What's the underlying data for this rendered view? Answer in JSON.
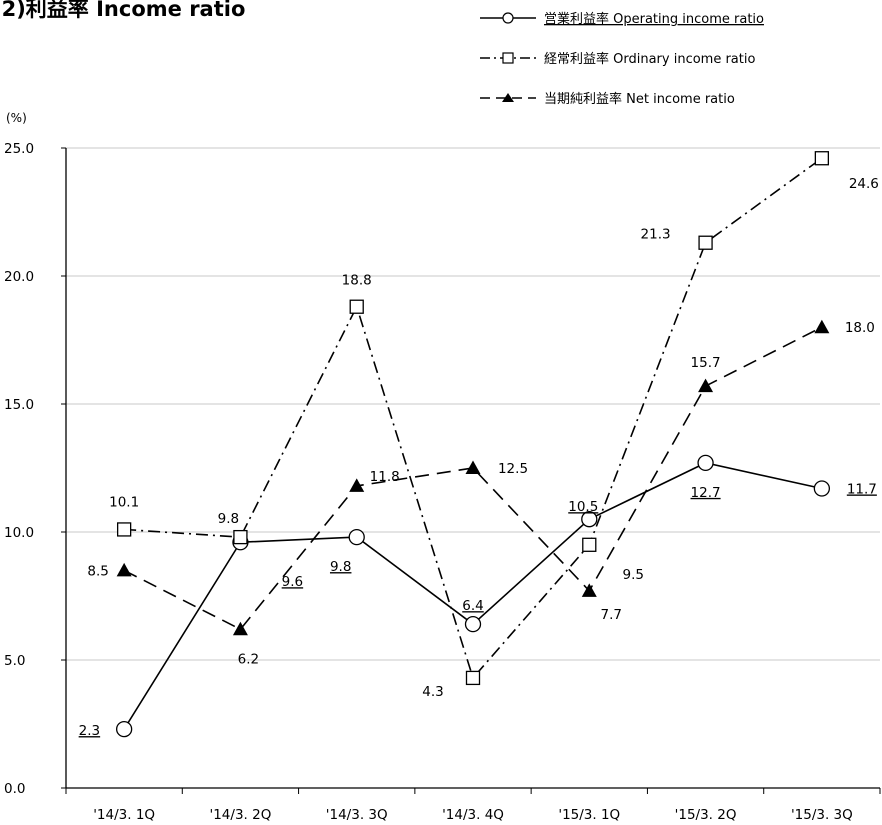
{
  "chart_data": {
    "type": "line",
    "title": "(2)利益率 Income ratio",
    "ylabel": "(%)",
    "xlabel": "",
    "ylim": [
      0,
      25
    ],
    "yticks": [
      "0.0",
      "5.0",
      "10.0",
      "15.0",
      "20.0",
      "25.0"
    ],
    "categories": [
      "'14/3. 1Q",
      "'14/3. 2Q",
      "'14/3. 3Q",
      "'14/3. 4Q",
      "'15/3. 1Q",
      "'15/3. 2Q",
      "'15/3. 3Q"
    ],
    "legend_position": "top-right",
    "series": [
      {
        "name": "営業利益率 Operating income ratio",
        "values": [
          2.3,
          9.6,
          9.8,
          6.4,
          10.5,
          12.7,
          11.7
        ],
        "labels": [
          "2.3",
          "9.6",
          "9.8",
          "6.4",
          "10.5",
          "12.7",
          "11.7"
        ],
        "marker": "circle",
        "line": "solid"
      },
      {
        "name": "経常利益率 Ordinary income ratio",
        "values": [
          10.1,
          9.8,
          18.8,
          4.3,
          9.5,
          21.3,
          24.6
        ],
        "labels": [
          "10.1",
          "9.8",
          "18.8",
          "4.3",
          "9.5",
          "21.3",
          "24.6"
        ],
        "marker": "square",
        "line": "dash-dot"
      },
      {
        "name": "当期純利益率 Net income ratio",
        "values": [
          8.5,
          6.2,
          11.8,
          12.5,
          7.7,
          15.7,
          18.0
        ],
        "labels": [
          "8.5",
          "6.2",
          "11.8",
          "12.5",
          "7.7",
          "15.7",
          "18.0"
        ],
        "marker": "triangle",
        "line": "dashed"
      }
    ]
  }
}
